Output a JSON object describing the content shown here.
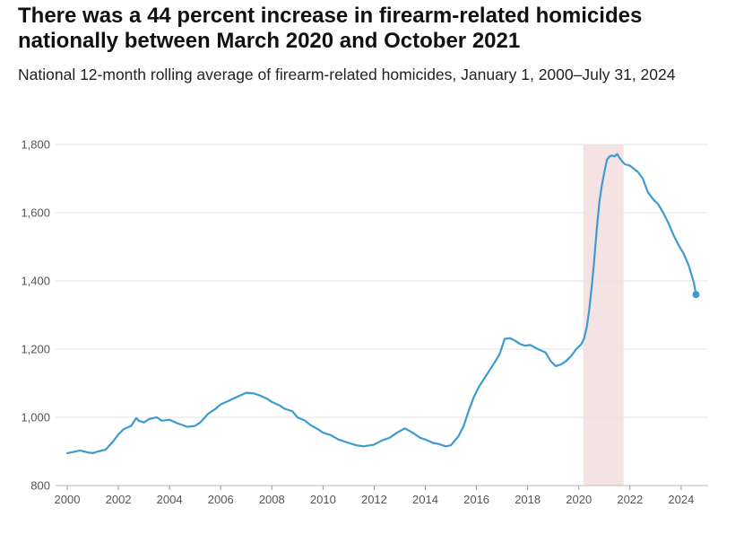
{
  "header": {
    "title": "There was a 44 percent increase in firearm-related homicides nationally between March 2020 and October 2021",
    "subtitle": "National 12-month rolling average of firearm-related homicides, January 1, 2000–July 31, 2024"
  },
  "colors": {
    "line": "#3e9bcf",
    "highlight": "#f5e3e3",
    "grid": "#e3e3e3",
    "axis": "#555555"
  },
  "chart_data": {
    "type": "line",
    "title": "There was a 44 percent increase in firearm-related homicides nationally between March 2020 and October 2021",
    "subtitle": "National 12-month rolling average of firearm-related homicides, January 1, 2000–July 31, 2024",
    "xlabel": "",
    "ylabel": "",
    "xlim": [
      2000,
      2024.6
    ],
    "ylim": [
      800,
      1800
    ],
    "grid": true,
    "x_ticks": [
      2000,
      2002,
      2004,
      2006,
      2008,
      2010,
      2012,
      2014,
      2016,
      2018,
      2020,
      2022,
      2024
    ],
    "x_tick_labels": [
      "2000",
      "2002",
      "2004",
      "2006",
      "2008",
      "2010",
      "2012",
      "2014",
      "2016",
      "2018",
      "2020",
      "2022",
      "2024"
    ],
    "y_ticks": [
      800,
      1000,
      1200,
      1400,
      1600,
      1800
    ],
    "y_tick_labels": [
      "800",
      "1,000",
      "1,200",
      "1,400",
      "1,600",
      "1,800"
    ],
    "highlight_range": [
      2020.17,
      2021.75
    ],
    "series": [
      {
        "x": [
          2000.0,
          2000.2,
          2000.5,
          2000.8,
          2001.0,
          2001.2,
          2001.5,
          2001.8,
          2002.0,
          2002.2,
          2002.5,
          2002.7,
          2002.8,
          2003.0,
          2003.2,
          2003.5,
          2003.7,
          2004.0,
          2004.3,
          2004.7,
          2005.0,
          2005.2,
          2005.5,
          2005.8,
          2006.0,
          2006.3,
          2006.7,
          2007.0,
          2007.3,
          2007.5,
          2007.8,
          2008.0,
          2008.3,
          2008.5,
          2008.8,
          2009.0,
          2009.3,
          2009.5,
          2009.8,
          2010.0,
          2010.3,
          2010.6,
          2011.0,
          2011.3,
          2011.6,
          2012.0,
          2012.3,
          2012.6,
          2012.9,
          2013.2,
          2013.5,
          2013.8,
          2014.0,
          2014.3,
          2014.5,
          2014.8,
          2015.0,
          2015.3,
          2015.5,
          2015.7,
          2015.9,
          2016.1,
          2016.4,
          2016.7,
          2016.9,
          2017.1,
          2017.3,
          2017.5,
          2017.7,
          2017.9,
          2018.1,
          2018.4,
          2018.7,
          2018.9,
          2019.1,
          2019.3,
          2019.5,
          2019.7,
          2019.9,
          2020.1,
          2020.2,
          2020.3,
          2020.4,
          2020.5,
          2020.6,
          2020.7,
          2020.8,
          2020.9,
          2021.0,
          2021.1,
          2021.2,
          2021.3,
          2021.4,
          2021.5,
          2021.6,
          2021.7,
          2021.8,
          2022.0,
          2022.3,
          2022.5,
          2022.7,
          2022.9,
          2023.1,
          2023.3,
          2023.5,
          2023.7,
          2023.9,
          2024.1,
          2024.3,
          2024.5,
          2024.58
        ],
        "values": [
          895,
          898,
          903,
          897,
          895,
          900,
          905,
          930,
          950,
          965,
          975,
          998,
          990,
          985,
          995,
          1000,
          990,
          993,
          983,
          972,
          975,
          985,
          1010,
          1025,
          1038,
          1048,
          1062,
          1072,
          1070,
          1065,
          1055,
          1045,
          1035,
          1025,
          1018,
          1000,
          990,
          978,
          965,
          955,
          948,
          935,
          925,
          918,
          915,
          920,
          932,
          940,
          955,
          968,
          955,
          940,
          935,
          925,
          922,
          915,
          918,
          945,
          975,
          1020,
          1060,
          1090,
          1125,
          1160,
          1185,
          1230,
          1232,
          1225,
          1215,
          1210,
          1212,
          1200,
          1190,
          1165,
          1150,
          1155,
          1165,
          1180,
          1200,
          1215,
          1230,
          1260,
          1310,
          1380,
          1460,
          1550,
          1630,
          1680,
          1720,
          1755,
          1765,
          1768,
          1765,
          1772,
          1760,
          1750,
          1742,
          1738,
          1720,
          1700,
          1660,
          1640,
          1625,
          1600,
          1570,
          1535,
          1505,
          1480,
          1445,
          1395,
          1360
        ]
      }
    ]
  }
}
